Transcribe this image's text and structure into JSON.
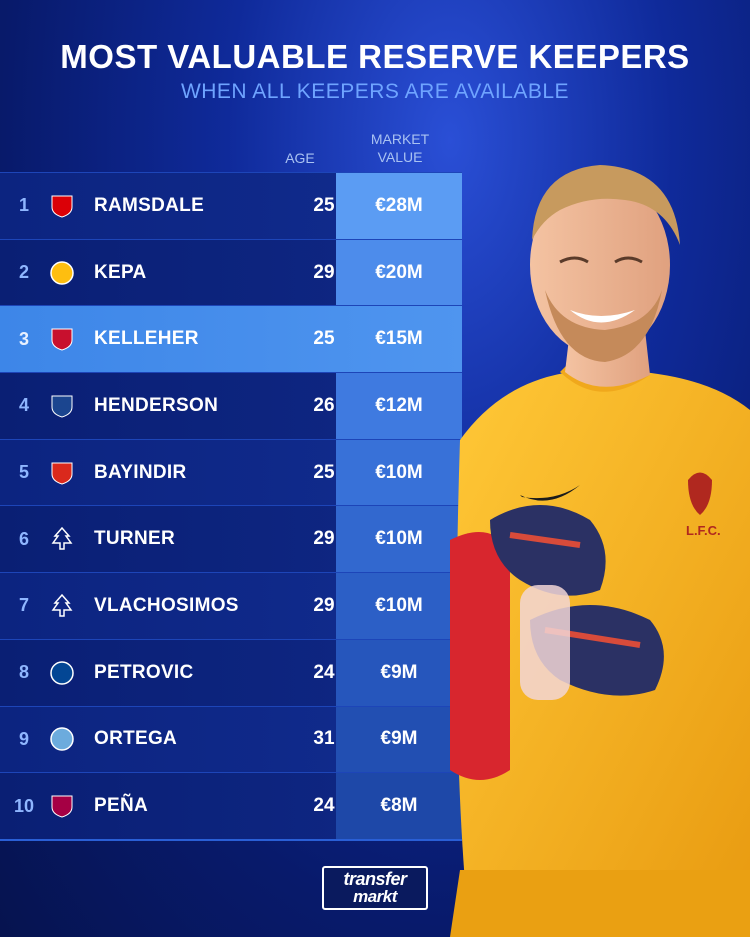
{
  "header": {
    "title": "MOST VALUABLE RESERVE KEEPERS",
    "subtitle": "WHEN ALL KEEPERS ARE AVAILABLE"
  },
  "columns": {
    "age": "AGE",
    "market_value_line1": "MARKET",
    "market_value_line2": "VALUE"
  },
  "rows": [
    {
      "rank": "1",
      "name": "RAMSDALE",
      "age": "25",
      "value": "€28M",
      "club_icon": "arsenal-crest-icon",
      "color": "#db0007"
    },
    {
      "rank": "2",
      "name": "KEPA",
      "age": "29",
      "value": "€20M",
      "club_icon": "real-madrid-crest-icon",
      "color": "#febe10"
    },
    {
      "rank": "3",
      "name": "KELLEHER",
      "age": "25",
      "value": "€15M",
      "club_icon": "liverpool-crest-icon",
      "color": "#c8102e"
    },
    {
      "rank": "4",
      "name": "HENDERSON",
      "age": "26",
      "value": "€12M",
      "club_icon": "crystal-palace-crest-icon",
      "color": "#1b458f"
    },
    {
      "rank": "5",
      "name": "BAYINDIR",
      "age": "25",
      "value": "€10M",
      "club_icon": "manchester-united-crest-icon",
      "color": "#da291c"
    },
    {
      "rank": "6",
      "name": "TURNER",
      "age": "29",
      "value": "€10M",
      "club_icon": "nottingham-forest-crest-icon",
      "color": "#ffffff"
    },
    {
      "rank": "7",
      "name": "VLACHOSIMOS",
      "age": "29",
      "value": "€10M",
      "club_icon": "nottingham-forest-crest-icon",
      "color": "#ffffff"
    },
    {
      "rank": "8",
      "name": "PETROVIC",
      "age": "24",
      "value": "€9M",
      "club_icon": "chelsea-crest-icon",
      "color": "#034694"
    },
    {
      "rank": "9",
      "name": "ORTEGA",
      "age": "31",
      "value": "€9M",
      "club_icon": "manchester-city-crest-icon",
      "color": "#6cabdd"
    },
    {
      "rank": "10",
      "name": "PEÑA",
      "age": "24",
      "value": "€8M",
      "club_icon": "barcelona-crest-icon",
      "color": "#a50044"
    }
  ],
  "branding": {
    "logo_line1": "transfer",
    "logo_line2": "markt"
  },
  "colors": {
    "background": "#0f2a9a",
    "subtitle": "#6fa4ff",
    "highlight": "#4f95ef",
    "kit": "#f6b21b"
  }
}
